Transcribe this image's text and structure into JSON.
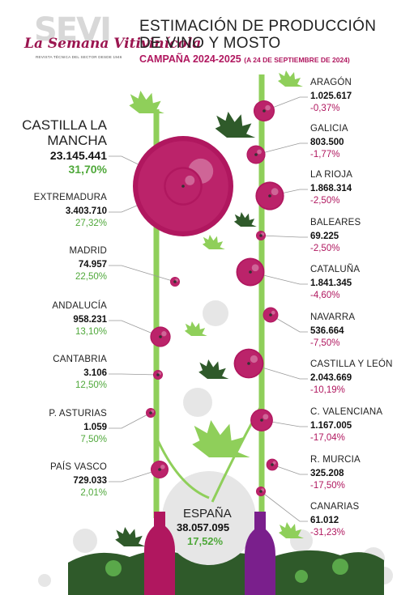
{
  "logo": {
    "bg_text": "SEVI",
    "main": "La Semana Vitivinícola",
    "tagline": "REVISTA TÉCNICA DEL SECTOR DESDE 1946"
  },
  "header": {
    "title_line1": "ESTIMACIÓN DE PRODUCCIÓN",
    "title_line2": "DE VINO Y MOSTO",
    "subtitle": "CAMPAÑA 2024-2025",
    "subtitle_note": "(A 24 DE SEPTIEMBRE DE 2024)"
  },
  "colors": {
    "grape": "#b0175f",
    "grape_light": "#d23a82",
    "vine": "#8fcf5a",
    "leaf": "#8fcf5a",
    "leaf_dark": "#2f5a2a",
    "positive": "#4fa83a",
    "negative": "#b0175f"
  },
  "chart_data": {
    "type": "bubble",
    "unit": "hl",
    "total": {
      "name": "ESPAÑA",
      "value": 38057095,
      "label": "38.057.095",
      "pct": "17,52%"
    },
    "regions_left": [
      {
        "name": "CASTILLA LA MANCHA",
        "value": 23145441,
        "label": "23.145.441",
        "pct": "31,70%"
      },
      {
        "name": "EXTREMADURA",
        "value": 3403710,
        "label": "3.403.710",
        "pct": "27,32%"
      },
      {
        "name": "MADRID",
        "value": 74957,
        "label": "74.957",
        "pct": "22,50%"
      },
      {
        "name": "ANDALUCÍA",
        "value": 958231,
        "label": "958.231",
        "pct": "13,10%"
      },
      {
        "name": "CANTABRIA",
        "value": 3106,
        "label": "3.106",
        "pct": "12,50%"
      },
      {
        "name": "P. ASTURIAS",
        "value": 1059,
        "label": "1.059",
        "pct": "7,50%"
      },
      {
        "name": "PAÍS VASCO",
        "value": 729033,
        "label": "729.033",
        "pct": "2,01%"
      }
    ],
    "regions_right": [
      {
        "name": "ARAGÓN",
        "value": 1025617,
        "label": "1.025.617",
        "pct": "-0,37%"
      },
      {
        "name": "GALICIA",
        "value": 803500,
        "label": "803.500",
        "pct": "-1,77%"
      },
      {
        "name": "LA RIOJA",
        "value": 1868314,
        "label": "1.868.314",
        "pct": "-2,50%"
      },
      {
        "name": "BALEARES",
        "value": 69225,
        "label": "69.225",
        "pct": "-2,50%"
      },
      {
        "name": "CATALUÑA",
        "value": 1841345,
        "label": "1.841.345",
        "pct": "-4,60%"
      },
      {
        "name": "NAVARRA",
        "value": 536664,
        "label": "536.664",
        "pct": "-7,50%"
      },
      {
        "name": "CASTILLA Y LEÓN",
        "value": 2043669,
        "label": "2.043.669",
        "pct": "-10,19%"
      },
      {
        "name": "C. VALENCIANA",
        "value": 1167005,
        "label": "1.167.005",
        "pct": "-17,04%"
      },
      {
        "name": "R. MURCIA",
        "value": 325208,
        "label": "325.208",
        "pct": "-17,50%"
      },
      {
        "name": "CANARIAS",
        "value": 61012,
        "label": "61.012",
        "pct": "-31,23%"
      }
    ]
  }
}
